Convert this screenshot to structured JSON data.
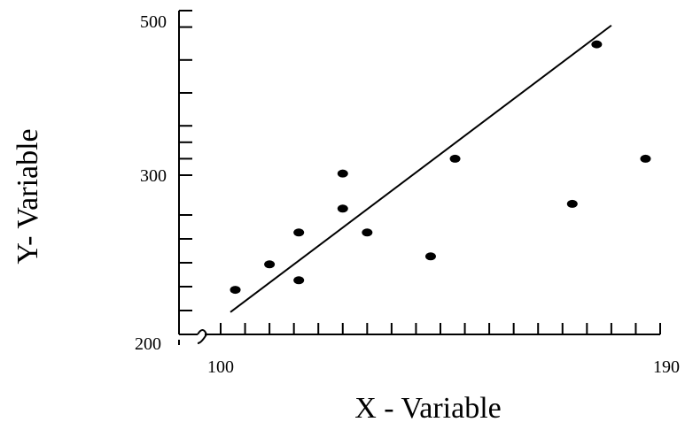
{
  "chart_data": {
    "type": "scatter",
    "xlabel": "X - Variable",
    "ylabel": "Y- Variable",
    "x_tick_labels": [
      {
        "value": 100,
        "label": "100"
      },
      {
        "value": 190,
        "label": "190"
      }
    ],
    "y_tick_labels": [
      {
        "value": 200,
        "label": "200"
      },
      {
        "value": 300,
        "label": "300"
      },
      {
        "value": 500,
        "label": "500"
      }
    ],
    "xlim": [
      96,
      192
    ],
    "y_tick_values": [
      200,
      215,
      230,
      245,
      260,
      275,
      300,
      320,
      340,
      360,
      400,
      440,
      480,
      500
    ],
    "y_axis_break": true,
    "grid": false,
    "points": [
      {
        "x": 103,
        "y": 228
      },
      {
        "x": 110,
        "y": 244
      },
      {
        "x": 116,
        "y": 234
      },
      {
        "x": 116,
        "y": 264
      },
      {
        "x": 125,
        "y": 279
      },
      {
        "x": 125,
        "y": 302
      },
      {
        "x": 130,
        "y": 264
      },
      {
        "x": 143,
        "y": 249
      },
      {
        "x": 148,
        "y": 320
      },
      {
        "x": 172,
        "y": 282
      },
      {
        "x": 177,
        "y": 459
      },
      {
        "x": 187,
        "y": 320
      }
    ],
    "trend_line": {
      "x": [
        102,
        180
      ],
      "y": [
        214,
        482
      ]
    }
  }
}
